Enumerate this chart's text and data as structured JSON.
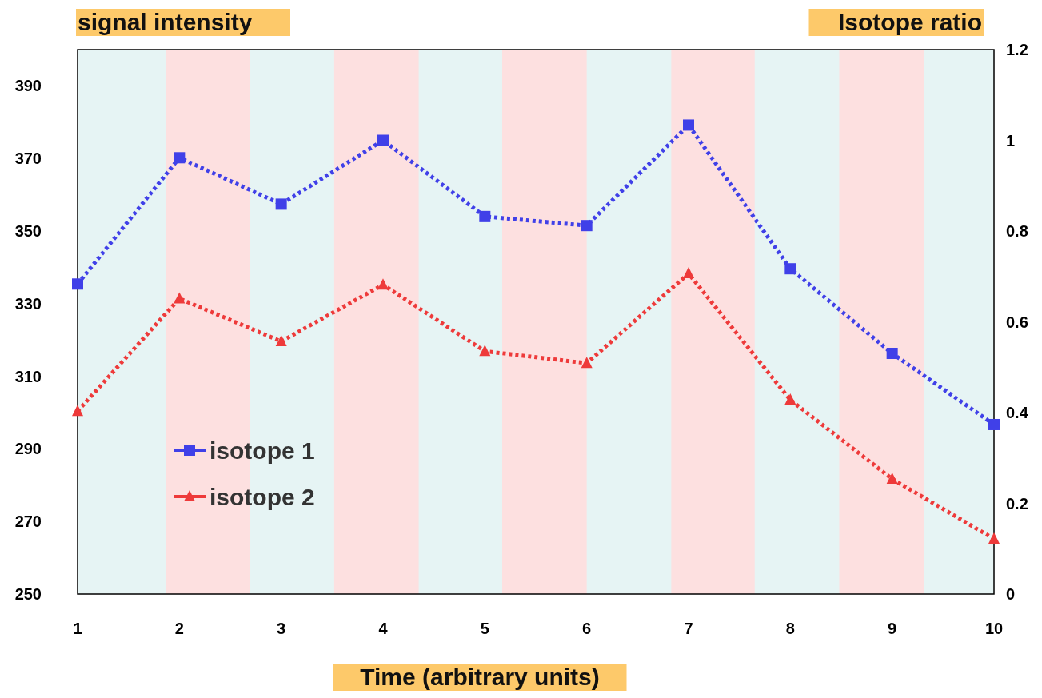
{
  "chart_data": {
    "type": "line",
    "xlabel": "Time (arbitrary units)",
    "ylabel": "signal intensity",
    "y2label": "Isotope ratio",
    "x": [
      1,
      2,
      3,
      4,
      5,
      6,
      7,
      8,
      9,
      10
    ],
    "xlim": [
      1,
      10
    ],
    "xticks": [
      1,
      2,
      3,
      4,
      5,
      6,
      7,
      8,
      9,
      10
    ],
    "ylim": [
      250,
      400
    ],
    "yticks": [
      250,
      270,
      290,
      310,
      330,
      350,
      370,
      390
    ],
    "y2lim": [
      0,
      1.2
    ],
    "y2ticks": [
      0,
      0.2,
      0.4,
      0.6,
      0.8,
      1,
      1.2
    ],
    "series": [
      {
        "name": "isotope 1",
        "color": "#4040e8",
        "marker": "square",
        "values": [
          335.4,
          370.2,
          357.4,
          375,
          354,
          351.5,
          379.2,
          339.6,
          316.3,
          296.7
        ]
      },
      {
        "name": "isotope 2",
        "color": "#ee3a3a",
        "marker": "triangle",
        "values": [
          300.4,
          331.4,
          319.6,
          335.2,
          316.9,
          313.6,
          338.3,
          303.5,
          281.7,
          265.2
        ]
      }
    ],
    "bands": [
      {
        "axis": "x",
        "from": 1.87,
        "to": 2.69,
        "color": "#fde0e0"
      },
      {
        "axis": "x",
        "from": 3.52,
        "to": 4.35,
        "color": "#fde0e0"
      },
      {
        "axis": "x",
        "from": 5.17,
        "to": 6.0,
        "color": "#fde0e0"
      },
      {
        "axis": "x",
        "from": 6.83,
        "to": 7.65,
        "color": "#fde0e0"
      },
      {
        "axis": "x",
        "from": 8.48,
        "to": 9.31,
        "color": "#fde0e0"
      }
    ],
    "line_style": "dotted",
    "legend": "bottom left",
    "grid": false
  }
}
